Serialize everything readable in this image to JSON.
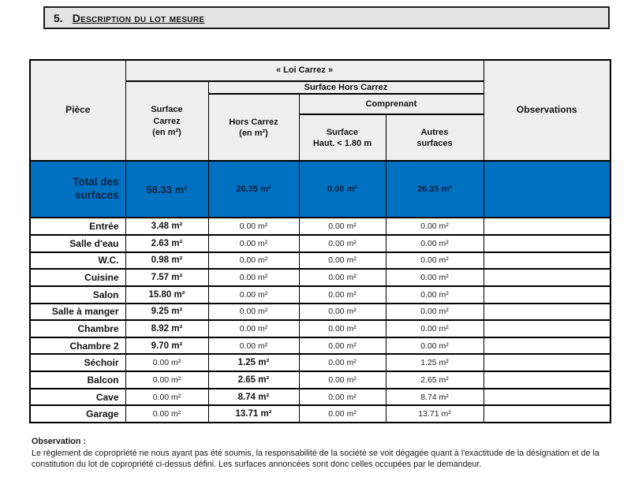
{
  "section_title": {
    "number": "5.",
    "text": "Description du lot mesure"
  },
  "table": {
    "headers": {
      "piece": "Pièce",
      "loi_carrez": "« Loi Carrez »",
      "surface_hors_carrez": "Surface Hors Carrez",
      "comprenant": "Comprenant",
      "surface_carrez": "Surface\nCarrez\n(en m²)",
      "hors_carrez": "Hors Carrez\n(en m²)",
      "surface_haut": "Surface\nHaut. < 1.80 m",
      "autres_surfaces": "Autres\nsurfaces",
      "observations": "Observations"
    },
    "total_row": {
      "label": "Total des\nsurfaces",
      "values": [
        "58.33 m²",
        "26.35 m²",
        "0.00 m²",
        "26.35 m²"
      ],
      "observation": ""
    },
    "rows": [
      {
        "piece": "Entrée",
        "values": [
          "3.48 m²",
          "0.00 m²",
          "0.00 m²",
          "0.00 m²"
        ],
        "observation": ""
      },
      {
        "piece": "Salle d'eau",
        "values": [
          "2.63 m²",
          "0.00 m²",
          "0.00 m²",
          "0.00 m²"
        ],
        "observation": ""
      },
      {
        "piece": "W.C.",
        "values": [
          "0.98 m²",
          "0.00 m²",
          "0.00 m²",
          "0.00 m²"
        ],
        "observation": ""
      },
      {
        "piece": "Cuisine",
        "values": [
          "7.57 m²",
          "0.00 m²",
          "0.00 m²",
          "0.00 m²"
        ],
        "observation": ""
      },
      {
        "piece": "Salon",
        "values": [
          "15.80 m²",
          "0.00 m²",
          "0.00 m²",
          "0.00 m²"
        ],
        "observation": ""
      },
      {
        "piece": "Salle à manger",
        "values": [
          "9.25 m²",
          "0.00 m²",
          "0.00 m²",
          "0.00 m²"
        ],
        "observation": ""
      },
      {
        "piece": "Chambre",
        "values": [
          "8.92 m²",
          "0.00 m²",
          "0.00 m²",
          "0.00 m²"
        ],
        "observation": ""
      },
      {
        "piece": "Chambre 2",
        "values": [
          "9.70 m²",
          "0.00 m²",
          "0.00 m²",
          "0.00 m²"
        ],
        "observation": ""
      },
      {
        "piece": "Séchoir",
        "values": [
          "0.00 m²",
          "1.25 m²",
          "0.00 m²",
          "1.25 m²"
        ],
        "observation": ""
      },
      {
        "piece": "Balcon",
        "values": [
          "0.00 m²",
          "2.65 m²",
          "0.00 m²",
          "2.65 m²"
        ],
        "observation": ""
      },
      {
        "piece": "Cave",
        "values": [
          "0.00 m²",
          "8.74 m²",
          "0.00 m²",
          "8.74 m²"
        ],
        "observation": ""
      },
      {
        "piece": "Garage",
        "values": [
          "0.00 m²",
          "13.71 m²",
          "0.00 m²",
          "13.71 m²"
        ],
        "observation": ""
      }
    ]
  },
  "footer": {
    "observation_title": "Observation :",
    "observation_text": "Le règlement de copropriété ne nous ayant pas été soumis, la responsabilité de la société se voit dégagée quant à l'exactitude de la désignation et de la constitution du lot de copropriété ci-dessus défini. Les surfaces annoncées sont donc celles occupées par le demandeur."
  },
  "colors": {
    "accent_blue": "#0070c0",
    "header_fill": "#efefef",
    "title_bar_fill": "#e3e3e3",
    "border": "#000000"
  }
}
